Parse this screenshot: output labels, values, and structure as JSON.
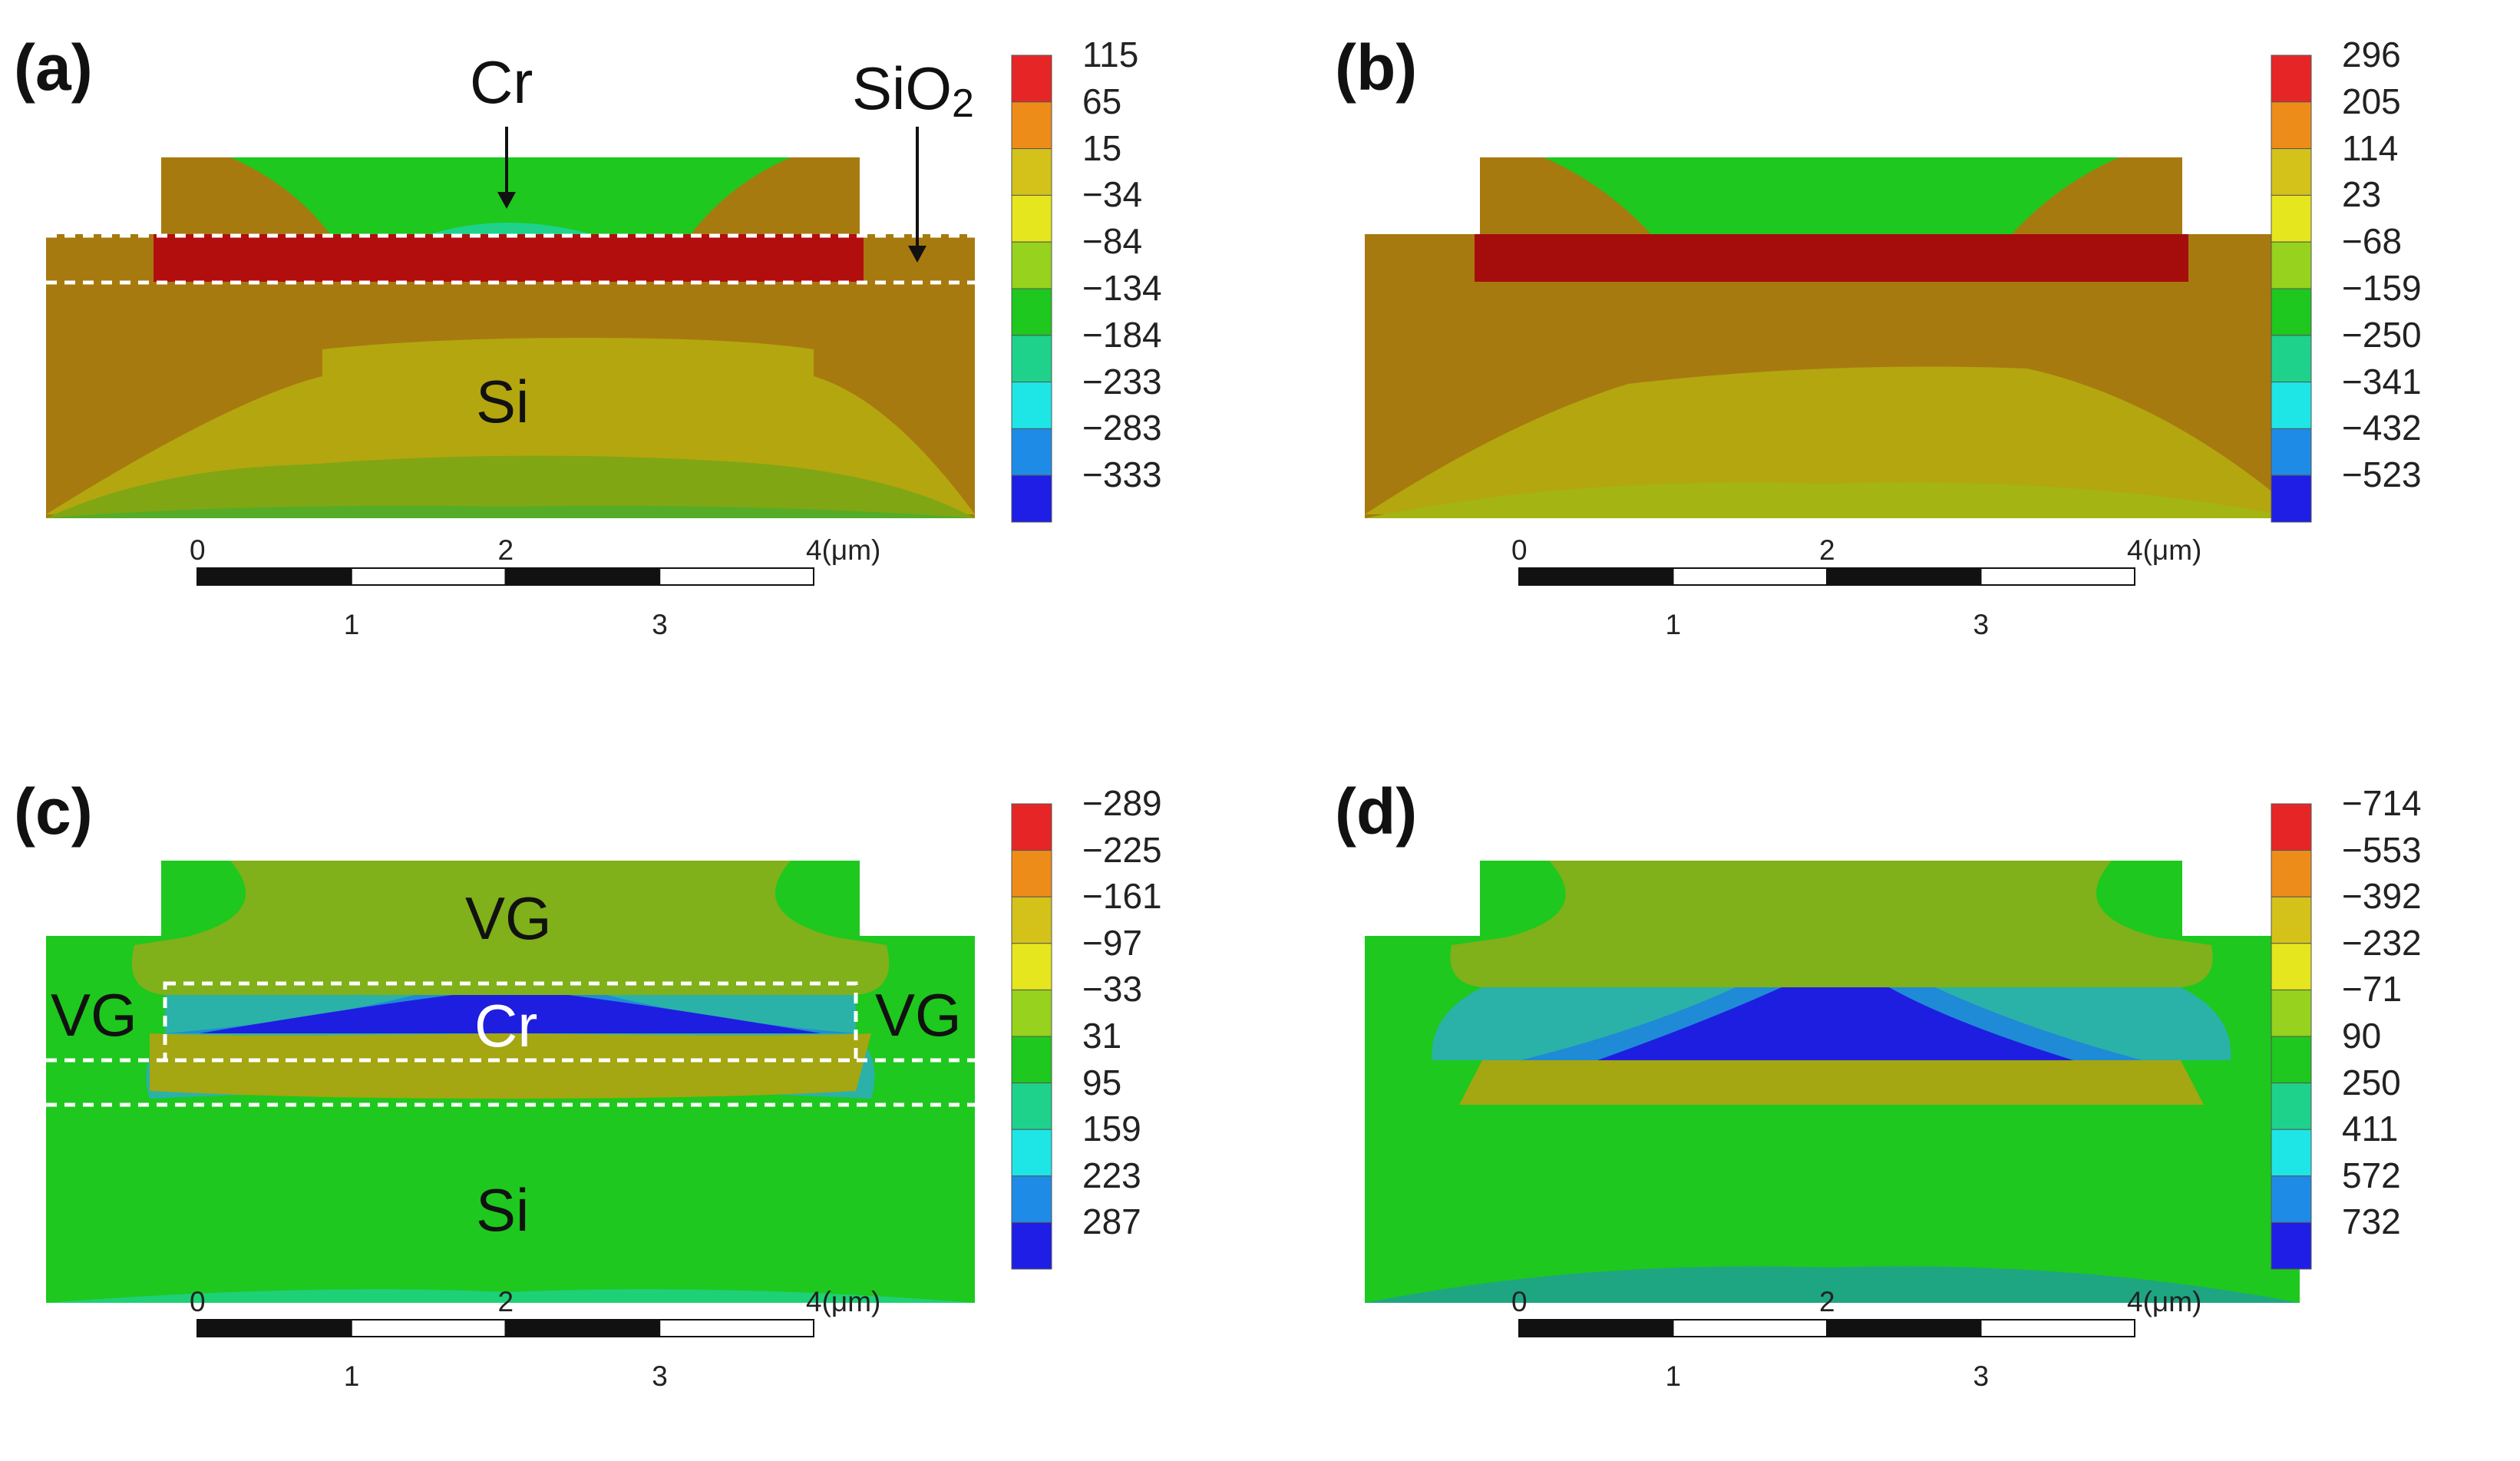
{
  "panels": [
    {
      "id": "a",
      "label": "(a)",
      "annotations": {
        "cr": "Cr",
        "sio2": "SiO",
        "sio2_sub": "2",
        "si": "Si"
      },
      "colorbar": [
        "115",
        "65",
        "15",
        "−34",
        "−84",
        "−134",
        "−184",
        "−233",
        "−283",
        "−333"
      ],
      "scalebar": {
        "top": [
          "0",
          "2",
          "4(μm)"
        ],
        "bottom": [
          "1",
          "3"
        ]
      }
    },
    {
      "id": "b",
      "label": "(b)",
      "colorbar": [
        "296",
        "205",
        "114",
        "23",
        "−68",
        "−159",
        "−250",
        "−341",
        "−432",
        "−523"
      ],
      "scalebar": {
        "top": [
          "0",
          "2",
          "4(μm)"
        ],
        "bottom": [
          "1",
          "3"
        ]
      }
    },
    {
      "id": "c",
      "label": "(c)",
      "annotations": {
        "vg_top": "VG",
        "vg_left": "VG",
        "vg_right": "VG",
        "cr": "Cr",
        "si": "Si"
      },
      "colorbar": [
        "−289",
        "−225",
        "−161",
        "−97",
        "−33",
        "31",
        "95",
        "159",
        "223",
        "287"
      ],
      "scalebar": {
        "top": [
          "0",
          "2",
          "4(μm)"
        ],
        "bottom": [
          "1",
          "3"
        ]
      }
    },
    {
      "id": "d",
      "label": "(d)",
      "colorbar": [
        "−714",
        "−553",
        "−392",
        "−232",
        "−71",
        "90",
        "250",
        "411",
        "572",
        "732"
      ],
      "scalebar": {
        "top": [
          "0",
          "2",
          "4(μm)"
        ],
        "bottom": [
          "1",
          "3"
        ]
      }
    }
  ],
  "colorbar_colors": [
    "#e62626",
    "#ee8c1a",
    "#d4c21a",
    "#e6e61e",
    "#96d21e",
    "#1ec81e",
    "#1ed28c",
    "#1ee6e6",
    "#1e8ce6",
    "#1e1ee6"
  ]
}
